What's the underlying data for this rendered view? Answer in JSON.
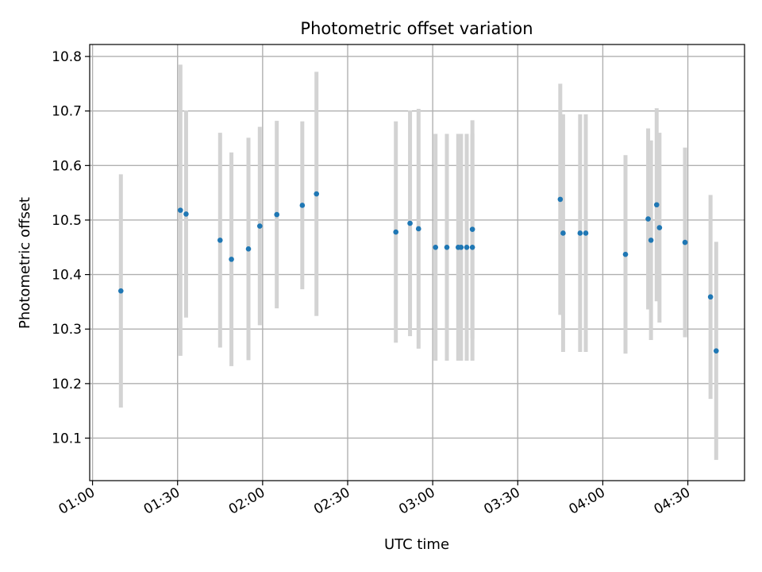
{
  "chart_data": {
    "type": "scatter",
    "title": "Photometric offset variation",
    "xlabel": "UTC time",
    "ylabel": "Photometric offset",
    "x_tick_labels": [
      "01:00",
      "01:30",
      "02:00",
      "02:30",
      "03:00",
      "03:30",
      "04:00",
      "04:30"
    ],
    "x_ticks": [
      "01:00",
      "01:30",
      "02:00",
      "02:30",
      "03:00",
      "03:30",
      "04:00",
      "04:30"
    ],
    "y_ticks": [
      10.1,
      10.2,
      10.3,
      10.4,
      10.5,
      10.6,
      10.7,
      10.8
    ],
    "y_tick_labels": [
      "10.1",
      "10.2",
      "10.3",
      "10.4",
      "10.5",
      "10.6",
      "10.7",
      "10.8"
    ],
    "xlim": [
      "00:59",
      "04:50"
    ],
    "ylim": [
      10.022,
      10.822
    ],
    "grid": true,
    "marker_color": "#1f77b4",
    "errorbar_color": "#d3d3d3",
    "points": [
      {
        "x": "01:10",
        "y": 10.37,
        "err": 0.214
      },
      {
        "x": "01:31",
        "y": 10.518,
        "err": 0.267
      },
      {
        "x": "01:33",
        "y": 10.511,
        "err": 0.19
      },
      {
        "x": "01:45",
        "y": 10.463,
        "err": 0.197
      },
      {
        "x": "01:49",
        "y": 10.428,
        "err": 0.196
      },
      {
        "x": "01:55",
        "y": 10.447,
        "err": 0.204
      },
      {
        "x": "01:59",
        "y": 10.489,
        "err": 0.182
      },
      {
        "x": "02:05",
        "y": 10.51,
        "err": 0.172
      },
      {
        "x": "02:14",
        "y": 10.527,
        "err": 0.154
      },
      {
        "x": "02:19",
        "y": 10.548,
        "err": 0.224
      },
      {
        "x": "02:47",
        "y": 10.478,
        "err": 0.203
      },
      {
        "x": "02:52",
        "y": 10.494,
        "err": 0.207
      },
      {
        "x": "02:55",
        "y": 10.484,
        "err": 0.22
      },
      {
        "x": "03:01",
        "y": 10.45,
        "err": 0.208
      },
      {
        "x": "03:05",
        "y": 10.45,
        "err": 0.208
      },
      {
        "x": "03:09",
        "y": 10.45,
        "err": 0.208
      },
      {
        "x": "03:10",
        "y": 10.45,
        "err": 0.208
      },
      {
        "x": "03:12",
        "y": 10.45,
        "err": 0.208
      },
      {
        "x": "03:14",
        "y": 10.45,
        "err": 0.208
      },
      {
        "x": "03:14",
        "y": 10.483,
        "err": 0.2
      },
      {
        "x": "03:45",
        "y": 10.538,
        "err": 0.212
      },
      {
        "x": "03:46",
        "y": 10.476,
        "err": 0.218
      },
      {
        "x": "03:52",
        "y": 10.476,
        "err": 0.218
      },
      {
        "x": "03:54",
        "y": 10.476,
        "err": 0.218
      },
      {
        "x": "04:08",
        "y": 10.437,
        "err": 0.182
      },
      {
        "x": "04:16",
        "y": 10.502,
        "err": 0.166
      },
      {
        "x": "04:17",
        "y": 10.463,
        "err": 0.183
      },
      {
        "x": "04:19",
        "y": 10.528,
        "err": 0.177
      },
      {
        "x": "04:20",
        "y": 10.486,
        "err": 0.174
      },
      {
        "x": "04:29",
        "y": 10.459,
        "err": 0.174
      },
      {
        "x": "04:38",
        "y": 10.359,
        "err": 0.187
      },
      {
        "x": "04:40",
        "y": 10.26,
        "err": 0.2
      }
    ]
  }
}
